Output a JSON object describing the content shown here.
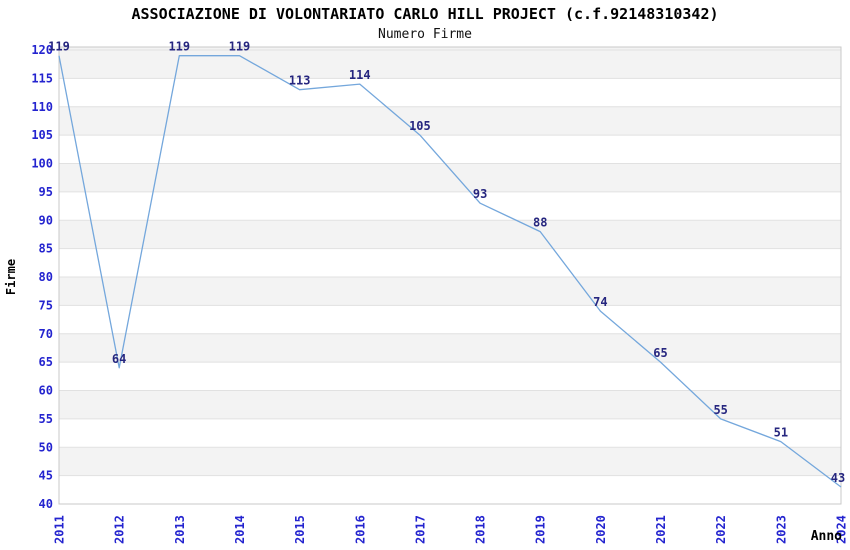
{
  "header": {
    "title": "ASSOCIAZIONE DI VOLONTARIATO CARLO HILL PROJECT (c.f.92148310342)",
    "subtitle": "Numero Firme"
  },
  "chart_data": {
    "type": "line",
    "title": "ASSOCIAZIONE DI VOLONTARIATO CARLO HILL PROJECT (c.f.92148310342)",
    "subtitle": "Numero Firme",
    "xlabel": "Anno",
    "ylabel": "Firme",
    "x": [
      2011,
      2012,
      2013,
      2014,
      2015,
      2016,
      2017,
      2018,
      2019,
      2020,
      2021,
      2022,
      2023,
      2024
    ],
    "series": [
      {
        "name": "Numero Firme",
        "values": [
          119,
          64,
          119,
          119,
          113,
          114,
          105,
          93,
          88,
          74,
          65,
          55,
          51,
          43
        ]
      }
    ],
    "ylim": [
      40,
      120
    ],
    "ytick_step": 5,
    "grid": "horizontal-gridlines-with-alternating-bands",
    "legend_position": "none",
    "point_labels_visible": true,
    "x_tick_rotation_degrees": -90,
    "colors": {
      "line": "#74a7dc",
      "tick_label": "#2424cf",
      "point_label": "#26267f",
      "band": "#f3f3f3",
      "gridline": "#e1e1e1",
      "border": "#c9c9c9",
      "background": "#ffffff",
      "title": "#000000"
    }
  }
}
